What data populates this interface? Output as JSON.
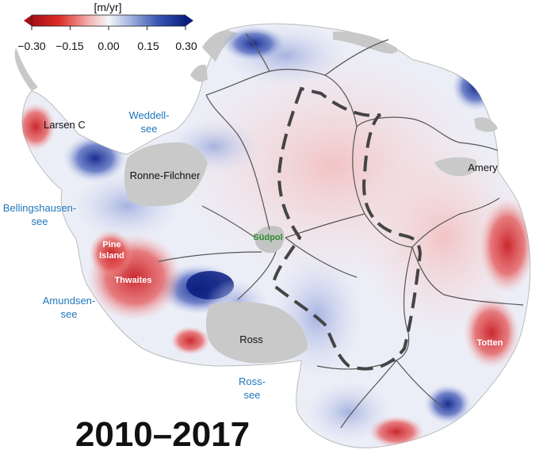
{
  "colorbar": {
    "unit": "[m/yr]",
    "ticks": [
      "−0.30",
      "−0.15",
      "0.00",
      "0.15",
      "0.30"
    ],
    "colors": [
      "#a50f15",
      "#de2d26",
      "#f4a6a6",
      "#f7f7f7",
      "#9fb3e0",
      "#3a56b4",
      "#0b1f80"
    ]
  },
  "labels": {
    "larsen": "Larsen C",
    "weddell": "Weddell-",
    "weddell2": "see",
    "ronne": "Ronne-Filchner",
    "bellings": "Bellingshausen-",
    "bellings2": "see",
    "pine": "Pine",
    "pine2": "Island",
    "thwaites": "Thwaites",
    "amundsen": "Amundsen-",
    "amundsen2": "see",
    "ross": "Ross",
    "rosssea": "Ross-",
    "rosssea2": "see",
    "sudpol": "Südpol",
    "amery": "Amery",
    "totten": "Totten"
  },
  "period": "2010–2017",
  "palette": {
    "ice_neutral": "#eceef7",
    "shelf_grey": "#c8c8c8",
    "thinning": "#d7262b",
    "thickening": "#2a3fa0",
    "divide": "#555555"
  }
}
